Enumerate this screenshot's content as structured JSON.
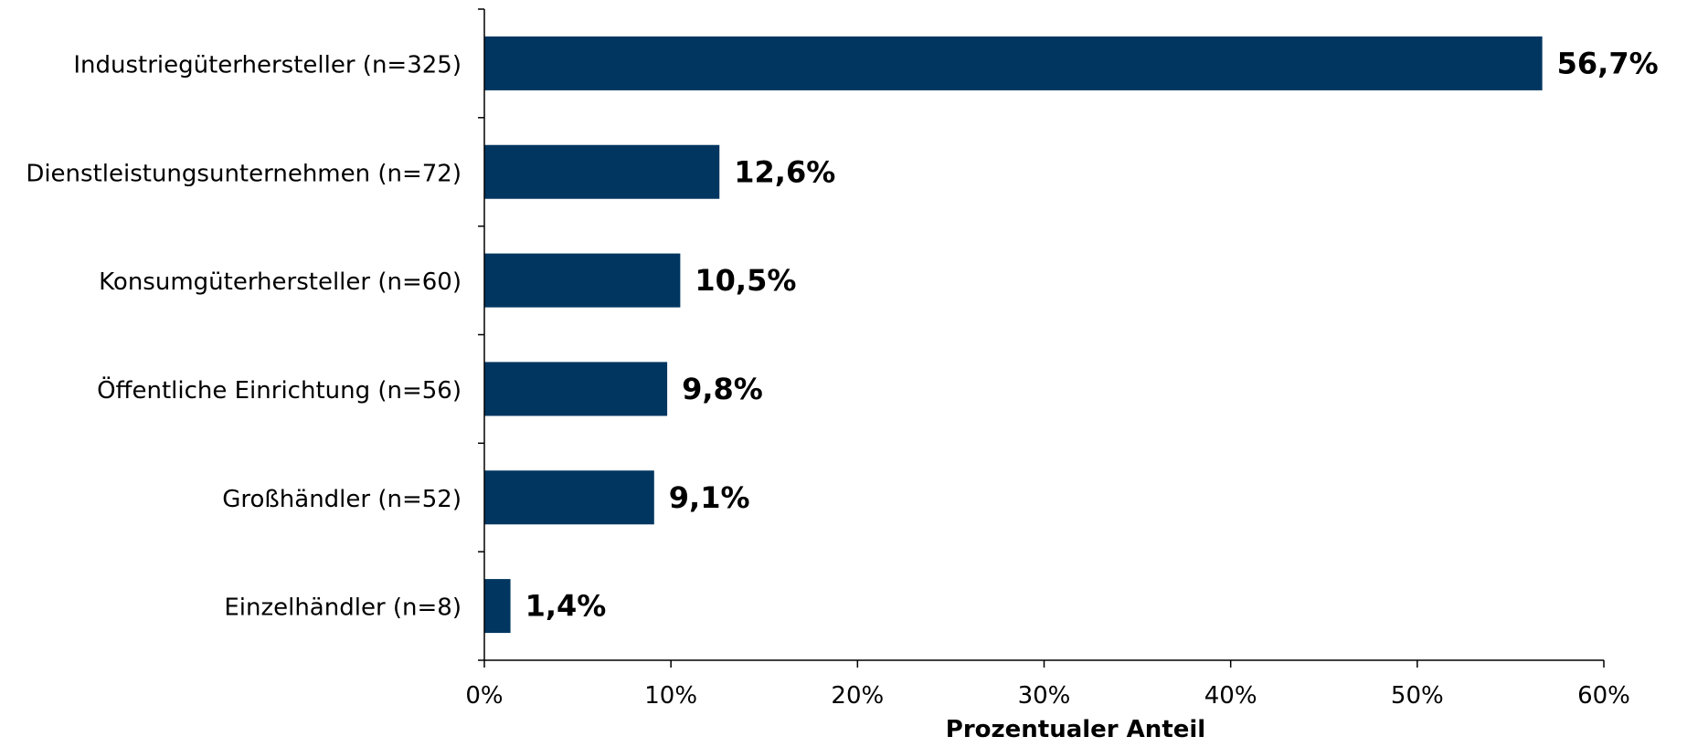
{
  "chart_data": {
    "type": "bar",
    "orientation": "horizontal",
    "title": "",
    "xlabel": "Prozentualer Anteil",
    "ylabel": "",
    "categories": [
      "Industriegüterhersteller (n=325)",
      "Dienstleistungsunternehmen (n=72)",
      "Konsumgüterhersteller (n=60)",
      "Öffentliche Einrichtung (n=56)",
      "Großhändler (n=52)",
      "Einzelhändler (n=8)"
    ],
    "values": [
      56.7,
      12.6,
      10.5,
      9.8,
      9.1,
      1.4
    ],
    "value_labels": [
      "56,7%",
      "12,6%",
      "10,5%",
      "9,8%",
      "9,1%",
      "1,4%"
    ],
    "xlim": [
      0,
      60
    ],
    "xticks": [
      0,
      10,
      20,
      30,
      40,
      50,
      60
    ],
    "xtick_labels": [
      "0%",
      "10%",
      "20%",
      "30%",
      "40%",
      "50%",
      "60%"
    ],
    "grid": false,
    "legend": "none",
    "bar_color": "#003660"
  }
}
